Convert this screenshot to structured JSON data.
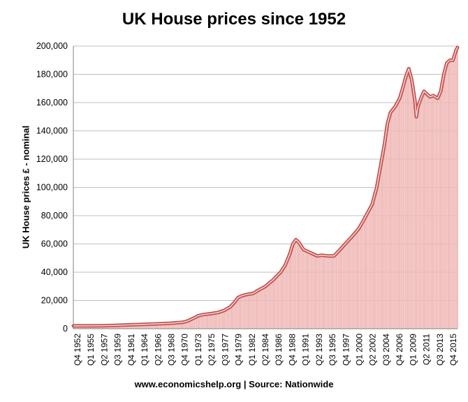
{
  "chart_data": {
    "type": "area",
    "title": "UK House prices since 1952",
    "ylabel": "UK House prices £ - nominal",
    "xlabel": "",
    "source": "www.economicshelp.org | Source: Nationwide",
    "ylim": [
      0,
      200000
    ],
    "yticks": [
      "0",
      "20,000",
      "40,000",
      "60,000",
      "80,000",
      "100,000",
      "120,000",
      "140,000",
      "160,000",
      "180,000",
      "200,000"
    ],
    "xticks": [
      "Q4 1952",
      "Q1 1955",
      "Q2 1957",
      "Q3 1959",
      "Q4 1961",
      "Q1 1964",
      "Q2 1966",
      "Q3 1968",
      "Q4 1970",
      "Q1 1973",
      "Q2 1975",
      "Q3 1977",
      "Q4 1979",
      "Q1 1982",
      "Q2 1984",
      "Q3 1986",
      "Q4 1988",
      "Q1 1991",
      "Q2 1993",
      "Q3 1995",
      "Q4 1997",
      "Q1 2000",
      "Q2 2002",
      "Q3 2004",
      "Q4 2006",
      "Q1 2009",
      "Q2 2011",
      "Q3 2013",
      "Q4 2015"
    ],
    "grid": true,
    "line_color": "#c0504d",
    "fill_color": "#f2c4c2",
    "series": [
      {
        "x": [
          1952.75,
          1955,
          1957.25,
          1959.5,
          1961.75,
          1964,
          1966.25,
          1968.5,
          1970.75,
          1971.5,
          1972.5,
          1973.25,
          1974,
          1975.25,
          1976.5,
          1977.5,
          1978.5,
          1979.25,
          1979.75,
          1980.5,
          1981.5,
          1982.25,
          1983,
          1984.25,
          1985.5,
          1986.75,
          1987.5,
          1988.25,
          1988.75,
          1989.25,
          1989.75,
          1990.5,
          1991.25,
          1992,
          1992.75,
          1993.5,
          1994.5,
          1995.5,
          1996.5,
          1997.75,
          1998.5,
          1999.5,
          2000.25,
          2001,
          2001.75,
          2002.5,
          2003.25,
          2003.75,
          2004.25,
          2004.75,
          2005.5,
          2006.25,
          2006.75,
          2007.25,
          2007.75,
          2008.25,
          2008.75,
          2009,
          2009.25,
          2009.75,
          2010.25,
          2010.75,
          2011.25,
          2011.75,
          2012.5,
          2013,
          2013.5,
          2014,
          2014.5,
          2015,
          2015.5,
          2015.75
        ],
        "values": [
          2000,
          2000,
          2100,
          2300,
          2700,
          3000,
          3400,
          3800,
          4600,
          5500,
          7500,
          9200,
          10000,
          10600,
          11500,
          13000,
          15500,
          19000,
          22000,
          23500,
          24500,
          25000,
          27000,
          30000,
          34500,
          40000,
          45000,
          53000,
          60000,
          63000,
          61000,
          56000,
          54500,
          53000,
          51500,
          52000,
          51500,
          51500,
          56000,
          62000,
          65500,
          70500,
          76000,
          82000,
          88000,
          100000,
          118000,
          130000,
          145000,
          153000,
          157000,
          163000,
          170000,
          178000,
          184000,
          176000,
          162000,
          150000,
          157000,
          163000,
          168000,
          166000,
          164000,
          165000,
          163000,
          168000,
          180000,
          188000,
          190000,
          190000,
          197000,
          199000
        ]
      }
    ]
  }
}
